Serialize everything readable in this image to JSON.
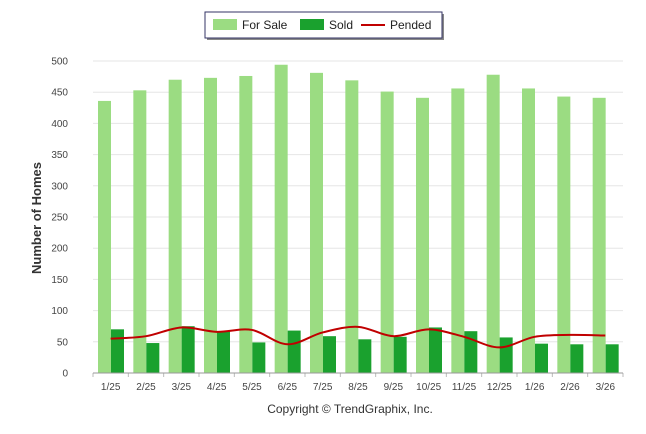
{
  "chart_data": {
    "type": "bar",
    "title": "",
    "xlabel": "",
    "ylabel": "Number of Homes",
    "ylim": [
      0,
      500
    ],
    "yticks": [
      0,
      50,
      100,
      150,
      200,
      250,
      300,
      350,
      400,
      450,
      500
    ],
    "grid": true,
    "legend_position": "top-center",
    "categories": [
      "1/25",
      "2/25",
      "3/25",
      "4/25",
      "5/25",
      "6/25",
      "7/25",
      "8/25",
      "9/25",
      "10/25",
      "11/25",
      "12/25",
      "1/26",
      "2/26",
      "3/26"
    ],
    "series": [
      {
        "name": "For Sale",
        "type": "bar",
        "color": "#9bdc82",
        "values": [
          436,
          453,
          470,
          473,
          476,
          494,
          481,
          469,
          451,
          441,
          456,
          478,
          456,
          443,
          441
        ]
      },
      {
        "name": "Sold",
        "type": "bar",
        "color": "#1aa12e",
        "values": [
          70,
          48,
          75,
          67,
          49,
          68,
          59,
          54,
          58,
          73,
          67,
          57,
          47,
          46,
          46
        ]
      },
      {
        "name": "Pended",
        "type": "line",
        "color": "#c00000",
        "values": [
          55,
          59,
          73,
          66,
          69,
          46,
          65,
          74,
          59,
          70,
          58,
          41,
          58,
          61,
          60
        ]
      }
    ],
    "credit": "Copyright © TrendGraphix, Inc."
  }
}
